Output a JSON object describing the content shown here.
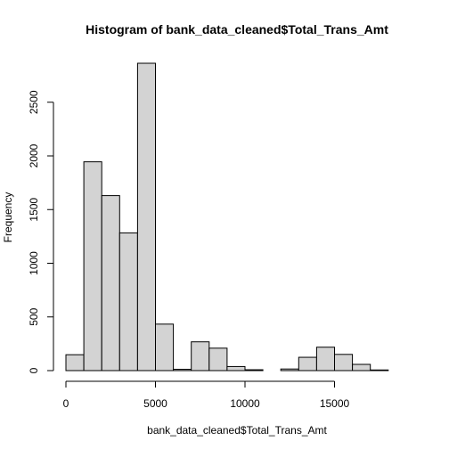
{
  "chart_data": {
    "type": "bar",
    "title": "Histogram of bank_data_cleaned$Total_Trans_Amt",
    "xlabel": "bank_data_cleaned$Total_Trans_Amt",
    "ylabel": "Frequency",
    "bin_width": 1000,
    "bins": [
      {
        "start": 0,
        "end": 1000,
        "count": 148
      },
      {
        "start": 1000,
        "end": 2000,
        "count": 1945
      },
      {
        "start": 2000,
        "end": 3000,
        "count": 1630
      },
      {
        "start": 3000,
        "end": 4000,
        "count": 1283
      },
      {
        "start": 4000,
        "end": 5000,
        "count": 2863
      },
      {
        "start": 5000,
        "end": 6000,
        "count": 433
      },
      {
        "start": 6000,
        "end": 7000,
        "count": 12
      },
      {
        "start": 7000,
        "end": 8000,
        "count": 268
      },
      {
        "start": 8000,
        "end": 9000,
        "count": 209
      },
      {
        "start": 9000,
        "end": 10000,
        "count": 38
      },
      {
        "start": 10000,
        "end": 11000,
        "count": 8
      },
      {
        "start": 11000,
        "end": 12000,
        "count": 0
      },
      {
        "start": 12000,
        "end": 13000,
        "count": 15
      },
      {
        "start": 13000,
        "end": 14000,
        "count": 124
      },
      {
        "start": 14000,
        "end": 15000,
        "count": 218
      },
      {
        "start": 15000,
        "end": 16000,
        "count": 151
      },
      {
        "start": 16000,
        "end": 17000,
        "count": 58
      },
      {
        "start": 17000,
        "end": 18000,
        "count": 6
      }
    ],
    "xlim": [
      0,
      18000
    ],
    "ylim": [
      0,
      2863
    ],
    "x_ticks": [
      0,
      5000,
      10000,
      15000
    ],
    "x_tick_labels": [
      "0",
      "5000",
      "10000",
      "15000"
    ],
    "y_ticks": [
      0,
      500,
      1000,
      1500,
      2000,
      2500
    ],
    "y_tick_labels": [
      "0",
      "500",
      "1000",
      "1500",
      "2000",
      "2500"
    ],
    "grid": false,
    "legend": "none",
    "colors": {
      "bar_fill": "#d3d3d3",
      "bar_stroke": "#000000"
    }
  }
}
